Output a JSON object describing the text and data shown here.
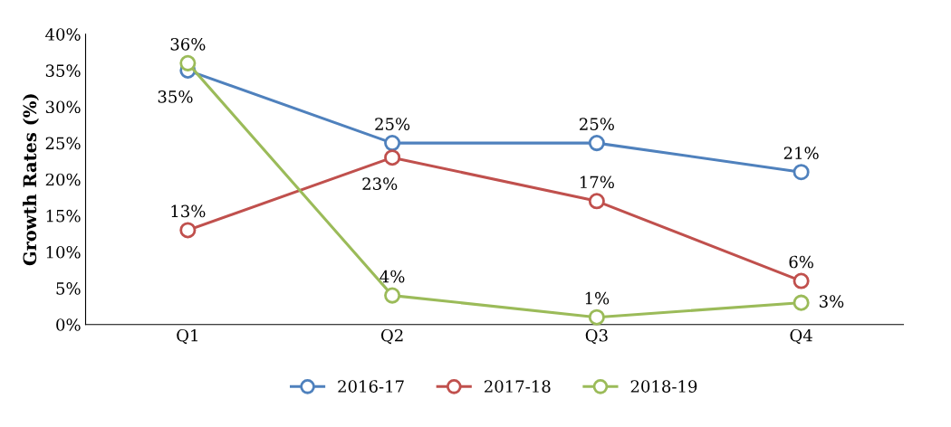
{
  "chart_data": {
    "type": "line",
    "ylabel": "Growth Rates (%)",
    "categories": [
      "Q1",
      "Q2",
      "Q3",
      "Q4"
    ],
    "series": [
      {
        "name": "2016-17",
        "color": "#4f81bd",
        "values": [
          35,
          25,
          25,
          21
        ],
        "value_labels": [
          "35%",
          "25%",
          "25%",
          "21%"
        ]
      },
      {
        "name": "2017-18",
        "color": "#c0504d",
        "values": [
          13,
          23,
          17,
          6
        ],
        "value_labels": [
          "13%",
          "23%",
          "17%",
          "6%"
        ]
      },
      {
        "name": "2018-19",
        "color": "#9bbb59",
        "values": [
          36,
          4,
          1,
          3
        ],
        "value_labels": [
          "36%",
          "4%",
          "1%",
          "3%"
        ]
      }
    ],
    "ylim": [
      0,
      40
    ],
    "yticks": [
      {
        "value": 0,
        "label": "0%"
      },
      {
        "value": 5,
        "label": "5%"
      },
      {
        "value": 10,
        "label": "10%"
      },
      {
        "value": 15,
        "label": "15%"
      },
      {
        "value": 20,
        "label": "20%"
      },
      {
        "value": 25,
        "label": "25%"
      },
      {
        "value": 30,
        "label": "30%"
      },
      {
        "value": 35,
        "label": "35%"
      },
      {
        "value": 40,
        "label": "40%"
      }
    ],
    "marker": "circle",
    "line_style": "solid",
    "legend": "bottom",
    "grid": false
  }
}
